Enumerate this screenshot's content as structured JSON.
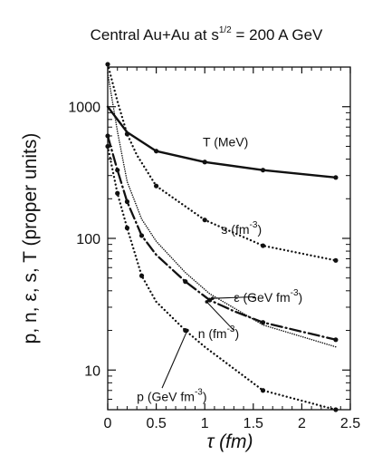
{
  "chart_data": {
    "type": "line",
    "title": "Central Au+Au at s^1/2 = 200 A GeV",
    "title_parts": {
      "base": "Central Au+Au at s",
      "sup": "1/2",
      "tail": " = 200 A GeV"
    },
    "xlabel": "τ (fm)",
    "ylabel": "p, n, ε, s, T (proper units)",
    "xlim": [
      0,
      2.5
    ],
    "ylim": [
      5,
      2000
    ],
    "yscale": "log",
    "x_ticks": [
      0,
      0.5,
      1,
      1.5,
      2,
      2.5
    ],
    "x_tick_labels": [
      "0",
      "0.5",
      "1",
      "1.5",
      "2",
      "2.5"
    ],
    "y_ticks": [
      10,
      100,
      1000
    ],
    "y_tick_labels": [
      "10",
      "100",
      "1000"
    ],
    "grid": false,
    "legend": "none",
    "series": [
      {
        "name": "T (MeV)",
        "label_base": "T (MeV)",
        "label_sup": "",
        "label_tail": "",
        "style": "solid",
        "x": [
          0,
          0.2,
          0.5,
          1.0,
          1.6,
          2.35
        ],
        "y": [
          1000,
          640,
          460,
          380,
          330,
          290
        ],
        "label_pos": [
          0.98,
          500
        ],
        "points": [
          [
            0.5,
            460
          ],
          [
            1.0,
            380
          ],
          [
            1.6,
            330
          ],
          [
            2.35,
            290
          ]
        ]
      },
      {
        "name": "s (fm^-3)",
        "label_base": "s (fm",
        "label_sup": "-3",
        "label_tail": ")",
        "style": "dotted",
        "x": [
          0,
          0.1,
          0.2,
          0.3,
          0.5,
          1.0,
          1.6,
          2.35
        ],
        "y": [
          2100,
          1100,
          620,
          430,
          250,
          138,
          88,
          68
        ],
        "label_pos": [
          1.17,
          108
        ],
        "points": [
          [
            0,
            2100
          ],
          [
            0.2,
            620
          ],
          [
            0.5,
            250
          ],
          [
            1.0,
            138
          ],
          [
            1.6,
            88
          ],
          [
            2.35,
            68
          ]
        ]
      },
      {
        "name": "ε (GeV fm^-3)",
        "label_base": "ε (GeV fm",
        "label_sup": "-3",
        "label_tail": ")",
        "style": "fine-dotted",
        "x": [
          0,
          0.1,
          0.2,
          0.35,
          0.5,
          0.8,
          1.05,
          1.6,
          2.35
        ],
        "y": [
          1800,
          650,
          270,
          140,
          95,
          55,
          38,
          22,
          15
        ],
        "label_pos": [
          1.3,
          33
        ],
        "points": []
      },
      {
        "name": "n (fm^-3)",
        "label_base": "n (fm",
        "label_sup": "-3",
        "label_tail": ")",
        "style": "dash-dot",
        "x": [
          0,
          0.1,
          0.2,
          0.35,
          0.5,
          0.8,
          1.05,
          1.3,
          1.6,
          2.35
        ],
        "y": [
          600,
          330,
          190,
          105,
          75,
          47,
          34,
          28,
          23,
          17
        ],
        "label_pos": [
          0.93,
          17.5
        ],
        "points": [
          [
            0,
            600
          ],
          [
            0.1,
            330
          ],
          [
            0.2,
            190
          ],
          [
            0.35,
            105
          ],
          [
            0.8,
            47
          ],
          [
            1.05,
            34
          ],
          [
            1.6,
            23
          ],
          [
            2.35,
            17
          ]
        ]
      },
      {
        "name": "p (GeV fm^-3)",
        "label_base": "p (GeV fm",
        "label_sup": "-3",
        "label_tail": ")",
        "style": "dotted",
        "x": [
          0,
          0.1,
          0.2,
          0.35,
          0.5,
          0.8,
          1.0,
          1.6,
          2.35
        ],
        "y": [
          500,
          220,
          120,
          52,
          33,
          20,
          15,
          7,
          5
        ],
        "label_pos": [
          0.3,
          5.8
        ],
        "points": [
          [
            0,
            500
          ],
          [
            0.1,
            220
          ],
          [
            0.2,
            120
          ],
          [
            0.35,
            52
          ],
          [
            0.8,
            20
          ],
          [
            1.6,
            7
          ],
          [
            2.35,
            5
          ]
        ]
      }
    ],
    "annotations": [
      {
        "target": "ε (GeV fm^-3)",
        "from": [
          1.52,
          36
        ],
        "to": [
          1.08,
          35
        ]
      },
      {
        "target": "n (fm^-3)",
        "from": [
          1.3,
          20
        ],
        "to": [
          1.02,
          33
        ]
      },
      {
        "target": "p (GeV fm^-3)",
        "from": [
          0.56,
          7.3
        ],
        "to": [
          0.82,
          20
        ]
      }
    ]
  }
}
